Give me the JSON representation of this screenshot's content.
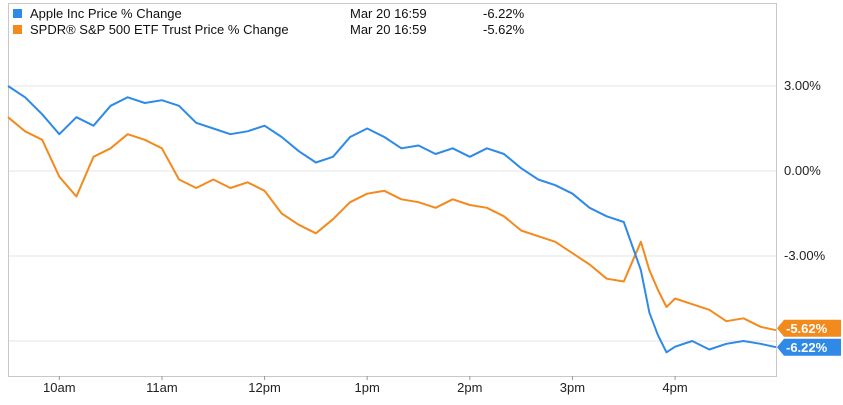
{
  "chart_data": {
    "type": "line",
    "title": "",
    "xlabel": "",
    "ylabel": "",
    "x_ticks": [
      "10am",
      "11am",
      "12pm",
      "1pm",
      "2pm",
      "3pm",
      "4pm"
    ],
    "y_ticks": [
      "3.00%",
      "0.00%",
      "-3.00%"
    ],
    "y_tick_values": [
      3,
      0,
      -3
    ],
    "ylim": [
      -6.8,
      5.9
    ],
    "x_range": [
      "9:30",
      "16:59"
    ],
    "grid": true,
    "legend_position": "top-left",
    "series": [
      {
        "name": "Apple Inc Price % Change",
        "date": "Mar 20 16:59",
        "last_label": "-6.22%",
        "last_value": -6.22,
        "color": "#2e8ae6",
        "points": [
          [
            "9:30",
            3.0
          ],
          [
            "9:40",
            2.6
          ],
          [
            "9:50",
            2.0
          ],
          [
            "10:00",
            1.3
          ],
          [
            "10:10",
            1.9
          ],
          [
            "10:20",
            1.6
          ],
          [
            "10:30",
            2.3
          ],
          [
            "10:40",
            2.6
          ],
          [
            "10:50",
            2.4
          ],
          [
            "11:00",
            2.5
          ],
          [
            "11:10",
            2.3
          ],
          [
            "11:20",
            1.7
          ],
          [
            "11:30",
            1.5
          ],
          [
            "11:40",
            1.3
          ],
          [
            "11:50",
            1.4
          ],
          [
            "12:00",
            1.6
          ],
          [
            "12:10",
            1.2
          ],
          [
            "12:20",
            0.7
          ],
          [
            "12:30",
            0.3
          ],
          [
            "12:40",
            0.5
          ],
          [
            "12:50",
            1.2
          ],
          [
            "13:00",
            1.5
          ],
          [
            "13:10",
            1.2
          ],
          [
            "13:20",
            0.8
          ],
          [
            "13:30",
            0.9
          ],
          [
            "13:40",
            0.6
          ],
          [
            "13:50",
            0.8
          ],
          [
            "14:00",
            0.5
          ],
          [
            "14:10",
            0.8
          ],
          [
            "14:20",
            0.6
          ],
          [
            "14:30",
            0.1
          ],
          [
            "14:40",
            -0.3
          ],
          [
            "14:50",
            -0.5
          ],
          [
            "15:00",
            -0.8
          ],
          [
            "15:10",
            -1.3
          ],
          [
            "15:20",
            -1.6
          ],
          [
            "15:30",
            -1.8
          ],
          [
            "15:40",
            -3.5
          ],
          [
            "15:45",
            -5.0
          ],
          [
            "15:50",
            -5.8
          ],
          [
            "15:55",
            -6.4
          ],
          [
            "16:00",
            -6.2
          ],
          [
            "16:10",
            -6.0
          ],
          [
            "16:20",
            -6.3
          ],
          [
            "16:30",
            -6.1
          ],
          [
            "16:40",
            -6.0
          ],
          [
            "16:50",
            -6.1
          ],
          [
            "16:59",
            -6.22
          ]
        ]
      },
      {
        "name": "SPDR® S&P 500 ETF Trust Price % Change",
        "date": "Mar 20 16:59",
        "last_label": "-5.62%",
        "last_value": -5.62,
        "color": "#f28a1e",
        "points": [
          [
            "9:30",
            1.9
          ],
          [
            "9:40",
            1.4
          ],
          [
            "9:50",
            1.1
          ],
          [
            "10:00",
            -0.2
          ],
          [
            "10:10",
            -0.9
          ],
          [
            "10:20",
            0.5
          ],
          [
            "10:30",
            0.8
          ],
          [
            "10:40",
            1.3
          ],
          [
            "10:50",
            1.1
          ],
          [
            "11:00",
            0.8
          ],
          [
            "11:10",
            -0.3
          ],
          [
            "11:20",
            -0.6
          ],
          [
            "11:30",
            -0.3
          ],
          [
            "11:40",
            -0.6
          ],
          [
            "11:50",
            -0.4
          ],
          [
            "12:00",
            -0.7
          ],
          [
            "12:10",
            -1.5
          ],
          [
            "12:20",
            -1.9
          ],
          [
            "12:30",
            -2.2
          ],
          [
            "12:40",
            -1.7
          ],
          [
            "12:50",
            -1.1
          ],
          [
            "13:00",
            -0.8
          ],
          [
            "13:10",
            -0.7
          ],
          [
            "13:20",
            -1.0
          ],
          [
            "13:30",
            -1.1
          ],
          [
            "13:40",
            -1.3
          ],
          [
            "13:50",
            -1.0
          ],
          [
            "14:00",
            -1.2
          ],
          [
            "14:10",
            -1.3
          ],
          [
            "14:20",
            -1.6
          ],
          [
            "14:30",
            -2.1
          ],
          [
            "14:40",
            -2.3
          ],
          [
            "14:50",
            -2.5
          ],
          [
            "15:00",
            -2.9
          ],
          [
            "15:10",
            -3.3
          ],
          [
            "15:20",
            -3.8
          ],
          [
            "15:30",
            -3.9
          ],
          [
            "15:35",
            -3.2
          ],
          [
            "15:40",
            -2.5
          ],
          [
            "15:45",
            -3.5
          ],
          [
            "15:50",
            -4.2
          ],
          [
            "15:55",
            -4.8
          ],
          [
            "16:00",
            -4.5
          ],
          [
            "16:10",
            -4.7
          ],
          [
            "16:20",
            -4.9
          ],
          [
            "16:30",
            -5.3
          ],
          [
            "16:40",
            -5.2
          ],
          [
            "16:50",
            -5.5
          ],
          [
            "16:59",
            -5.62
          ]
        ]
      }
    ]
  }
}
